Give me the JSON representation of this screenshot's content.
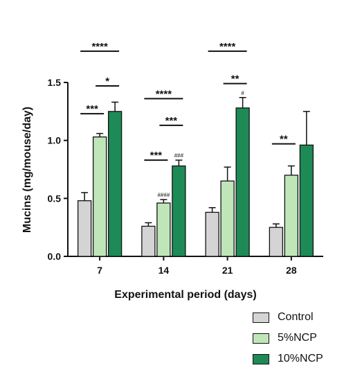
{
  "chart_data": {
    "type": "bar",
    "xlabel": "Experimental period (days)",
    "ylabel": "Mucins (mg/mouse/day)",
    "ylim": [
      0,
      1.5
    ],
    "yticks": [
      "0.0",
      "0.5",
      "1.0",
      "1.5"
    ],
    "categories": [
      "7",
      "14",
      "21",
      "28"
    ],
    "legend_position": "bottom-right",
    "series": [
      {
        "name": "Control",
        "color": "#d4d4d4",
        "values": [
          0.48,
          0.26,
          0.38,
          0.25
        ],
        "errors": [
          0.07,
          0.03,
          0.04,
          0.03
        ]
      },
      {
        "name": "5%NCP",
        "color": "#bfe6b8",
        "values": [
          1.03,
          0.46,
          0.65,
          0.7
        ],
        "errors": [
          0.03,
          0.03,
          0.12,
          0.08
        ]
      },
      {
        "name": "10%NCP",
        "color": "#1e8a56",
        "values": [
          1.25,
          0.78,
          1.28,
          0.96
        ],
        "errors": [
          0.08,
          0.05,
          0.09,
          0.29
        ]
      }
    ],
    "annotations": [
      {
        "text": "####",
        "category": "14",
        "series": "5%NCP"
      },
      {
        "text": "###",
        "category": "14",
        "series": "10%NCP"
      },
      {
        "text": "#",
        "category": "21",
        "series": "10%NCP"
      }
    ],
    "significance": [
      {
        "text": "****",
        "category": "7",
        "from": "Control",
        "to": "10%NCP",
        "level": 1.77
      },
      {
        "text": "*",
        "category": "7",
        "from": "5%NCP",
        "to": "10%NCP",
        "level": 1.47
      },
      {
        "text": "***",
        "category": "7",
        "from": "Control",
        "to": "5%NCP",
        "level": 1.23
      },
      {
        "text": "****",
        "category": "14",
        "from": "Control",
        "to": "10%NCP",
        "level": 1.36
      },
      {
        "text": "***",
        "category": "14",
        "from": "5%NCP",
        "to": "10%NCP",
        "level": 1.13
      },
      {
        "text": "***",
        "category": "14",
        "from": "Control",
        "to": "5%NCP",
        "level": 0.83
      },
      {
        "text": "****",
        "category": "21",
        "from": "Control",
        "to": "10%NCP",
        "level": 1.77
      },
      {
        "text": "**",
        "category": "21",
        "from": "5%NCP",
        "to": "10%NCP",
        "level": 1.49
      },
      {
        "text": "**",
        "category": "28",
        "from": "Control",
        "to": "5%NCP",
        "level": 0.97
      }
    ]
  }
}
